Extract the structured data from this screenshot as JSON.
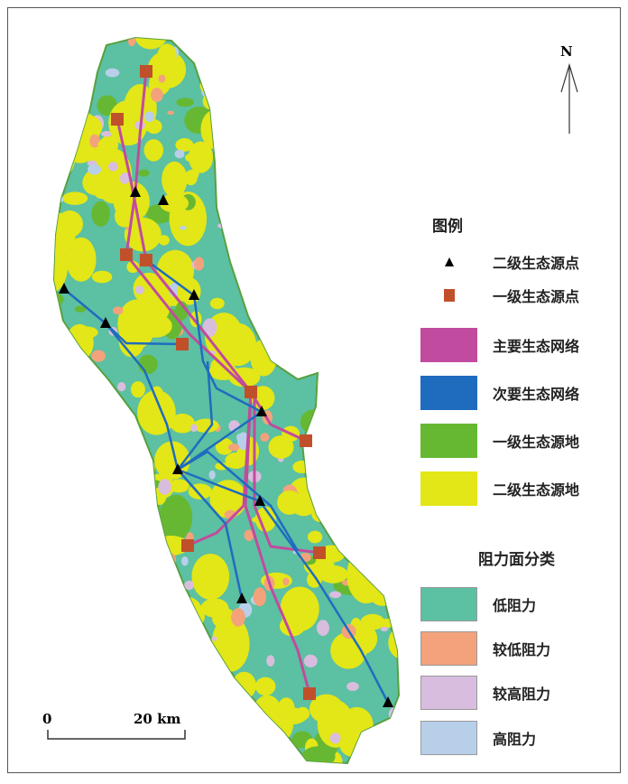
{
  "north_label": "N",
  "legend": {
    "title": "图例",
    "items": [
      {
        "label": "二级生态源点",
        "symbol": "triangle",
        "color": "#000000"
      },
      {
        "label": "一级生态源点",
        "symbol": "square",
        "color": "#c0502a"
      },
      {
        "label": "主要生态网络",
        "symbol": "swatch",
        "color": "#c14b9e"
      },
      {
        "label": "次要生态网络",
        "symbol": "swatch",
        "color": "#1f6cbf"
      },
      {
        "label": "一级生态源地",
        "symbol": "swatch",
        "color": "#66b832"
      },
      {
        "label": "二级生态源地",
        "symbol": "swatch",
        "color": "#e3e617"
      }
    ]
  },
  "resistance": {
    "title": "阻力面分类",
    "items": [
      {
        "label": "低阻力",
        "color": "#5cc0a2"
      },
      {
        "label": "较低阻力",
        "color": "#f3a27c"
      },
      {
        "label": "较高阻力",
        "color": "#d8bddf"
      },
      {
        "label": "高阻力",
        "color": "#b8cfea"
      }
    ]
  },
  "scale": {
    "start": "0",
    "end": "20 km"
  }
}
